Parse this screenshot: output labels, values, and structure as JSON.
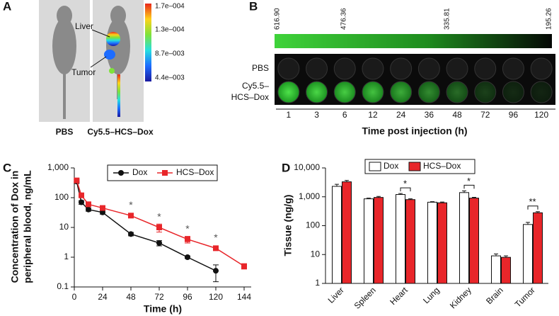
{
  "chart_data": [
    {
      "type": "image",
      "panel_label": "A",
      "annotations": [
        "Liver",
        "Tumor"
      ],
      "colorbar_labels": [
        "1.7e–004",
        "1.3e–004",
        "8.7e–003",
        "4.4e–003"
      ],
      "captions": [
        "PBS",
        "Cy5.5–HCS–Dox"
      ]
    },
    {
      "type": "image",
      "panel_label": "B",
      "scale_labels": [
        "616.90",
        "476.36",
        "335.81",
        "195.26"
      ],
      "rows": [
        [
          "PBS"
        ],
        [
          "Cy5.5–",
          "HCS–Dox"
        ]
      ],
      "categories": [
        "1",
        "3",
        "6",
        "12",
        "24",
        "36",
        "48",
        "72",
        "96",
        "120"
      ],
      "xlabel": "Time post injection (h)"
    },
    {
      "type": "line",
      "panel_label": "C",
      "log_y": true,
      "ylabel": [
        "Concentration of Dox in",
        "peripheral blood, ng/mL"
      ],
      "xlabel": "Time (h)",
      "x": [
        2,
        6,
        12,
        24,
        48,
        72,
        96,
        120,
        144
      ],
      "series": [
        {
          "name": "Dox",
          "color": "#111111",
          "marker": "circle",
          "values": [
            350,
            70,
            40,
            32,
            6,
            3,
            1,
            0.35,
            null
          ],
          "errors": [
            50,
            10,
            5,
            4,
            0.8,
            0.6,
            0.1,
            0.2,
            null
          ]
        },
        {
          "name": "HCS–Dox",
          "color": "#e8262a",
          "marker": "square",
          "values": [
            380,
            120,
            60,
            45,
            25,
            10,
            4,
            2,
            0.5
          ],
          "errors": [
            60,
            15,
            8,
            6,
            4,
            3,
            1,
            0.3,
            0.1
          ]
        }
      ],
      "significance": [
        null,
        null,
        null,
        null,
        "*",
        "*",
        "*",
        "*",
        null
      ],
      "xlim": [
        0,
        150
      ],
      "xticks": [
        0,
        24,
        48,
        72,
        96,
        120,
        144
      ],
      "ylim": [
        0.1,
        1000
      ],
      "yticks": [
        0.1,
        1,
        10,
        100,
        {
          "value": 1000,
          "label": "1,000"
        }
      ],
      "legend": "top"
    },
    {
      "type": "bar",
      "panel_label": "D",
      "log_y": true,
      "ylabel": "Tissue (ng/g)",
      "categories": [
        "Liver",
        "Spleen",
        "Heart",
        "Lung",
        "Kidney",
        "Brain",
        "Tumor"
      ],
      "series": [
        {
          "name": "Dox",
          "color": "#ffffff",
          "values": [
            2300,
            850,
            1200,
            650,
            1400,
            9,
            110
          ],
          "errors": [
            400,
            50,
            100,
            30,
            200,
            1.5,
            20
          ]
        },
        {
          "name": "HCS–Dox",
          "color": "#e8262a",
          "values": [
            3300,
            950,
            800,
            620,
            900,
            8,
            280
          ],
          "errors": [
            400,
            80,
            50,
            40,
            60,
            1,
            25
          ]
        }
      ],
      "significance": [
        null,
        null,
        "*",
        null,
        "*",
        null,
        "**"
      ],
      "ylim": [
        1,
        10000
      ],
      "yticks": [
        1,
        10,
        100,
        {
          "value": 1000,
          "label": "1,000"
        },
        {
          "value": 10000,
          "label": "10,000"
        }
      ],
      "legend": "top"
    }
  ]
}
